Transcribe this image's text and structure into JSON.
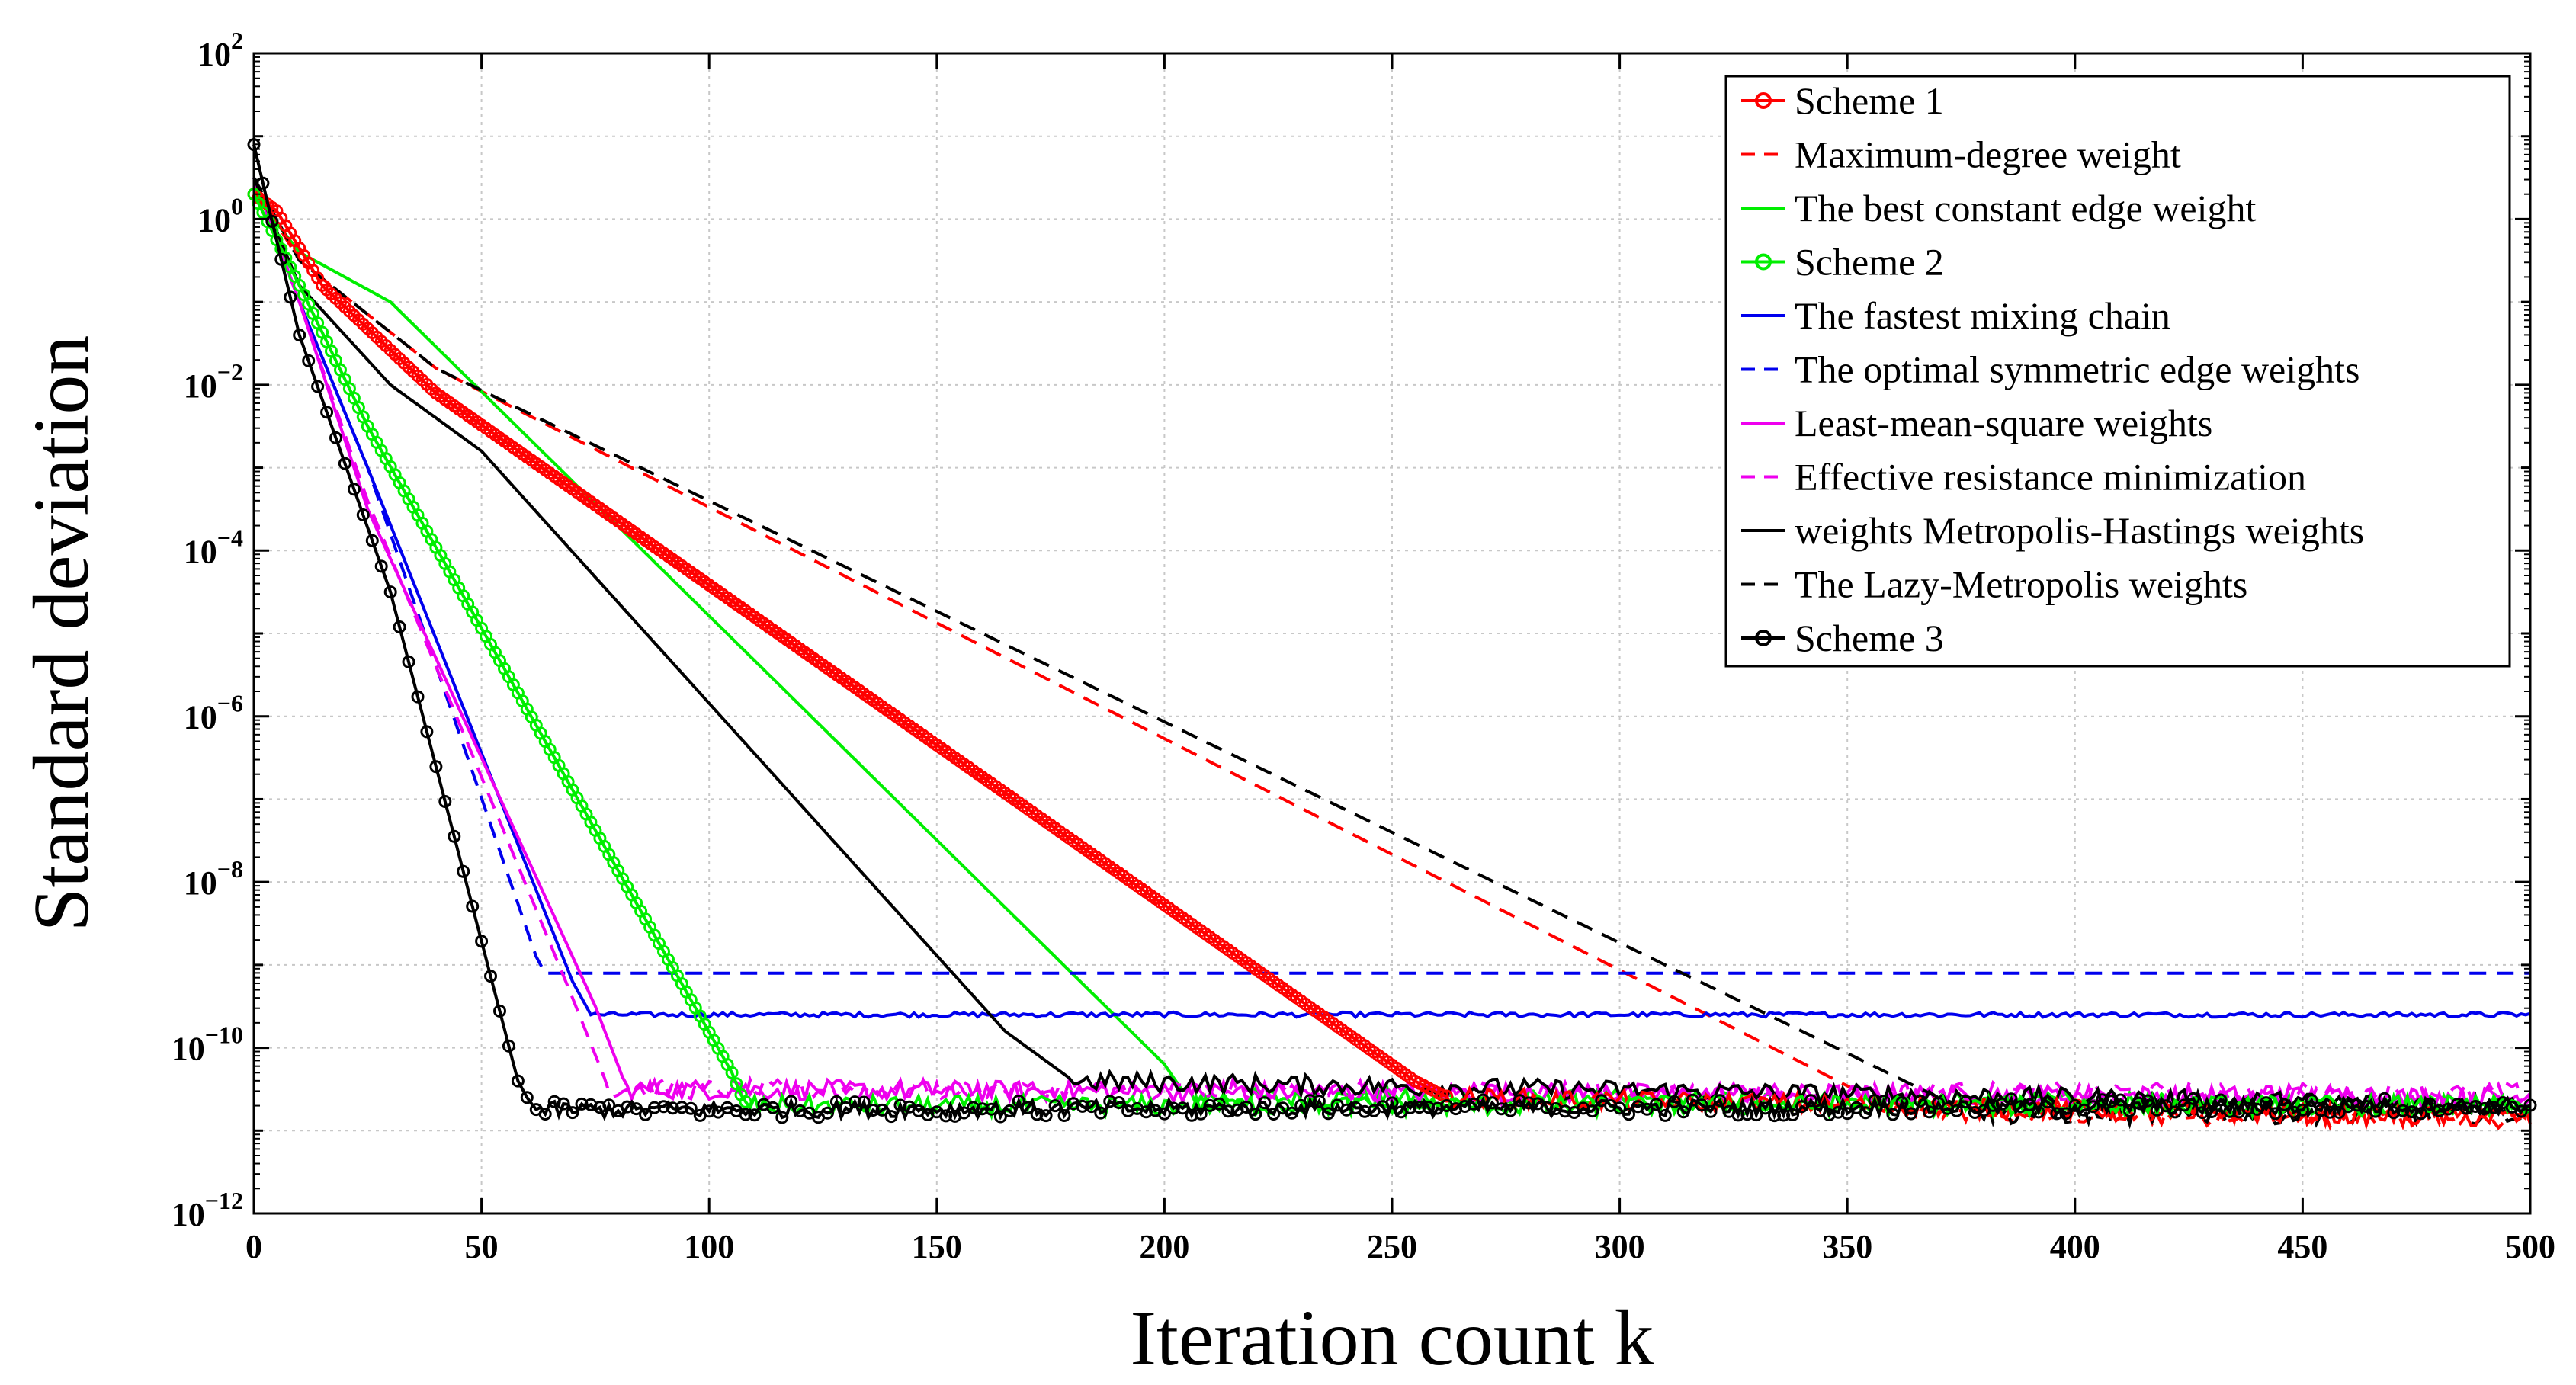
{
  "chart_data": {
    "type": "line",
    "title": "",
    "xlabel": "Iteration count k",
    "ylabel": "Standard deviation",
    "xlim": [
      0,
      500
    ],
    "ylim_exponents": [
      -12,
      2
    ],
    "yscale": "log",
    "grid": true,
    "legend_position": "top-right",
    "x_ticks": [
      "0",
      "50",
      "100",
      "150",
      "200",
      "250",
      "300",
      "350",
      "400",
      "450",
      "500"
    ],
    "y_ticks": [
      {
        "base": "10",
        "exp": "2"
      },
      {
        "base": "10",
        "exp": "0"
      },
      {
        "base": "10",
        "exp": "−2"
      },
      {
        "base": "10",
        "exp": "−4"
      },
      {
        "base": "10",
        "exp": "−6"
      },
      {
        "base": "10",
        "exp": "−8"
      },
      {
        "base": "10",
        "exp": "−10"
      },
      {
        "base": "10",
        "exp": "−12"
      }
    ],
    "series": [
      {
        "name": "Scheme 1",
        "color": "#ff0000",
        "dash": "solid",
        "marker": "circle",
        "markerEvery": 1,
        "points": [
          [
            0,
            0.3
          ],
          [
            5,
            0.1
          ],
          [
            15,
            -0.8
          ],
          [
            40,
            -2.1
          ],
          [
            255,
            -10.4
          ],
          [
            262,
            -10.6
          ],
          [
            500,
            -10.85
          ]
        ],
        "floor": -10.85,
        "noiseFrom": 262
      },
      {
        "name": "Maximum-degree weight",
        "color": "#ff0000",
        "dash": "dash",
        "marker": "none",
        "points": [
          [
            0,
            0.4
          ],
          [
            10,
            -0.5
          ],
          [
            40,
            -1.8
          ],
          [
            355,
            -10.6
          ],
          [
            370,
            -10.8
          ],
          [
            500,
            -10.85
          ]
        ],
        "floor": -10.85,
        "noiseFrom": 370
      },
      {
        "name": "The best constant edge weight",
        "color": "#00ee00",
        "dash": "solid",
        "marker": "none",
        "points": [
          [
            0,
            0.3
          ],
          [
            10,
            -0.4
          ],
          [
            30,
            -1.0
          ],
          [
            200,
            -10.2
          ],
          [
            205,
            -10.6
          ],
          [
            500,
            -10.7
          ]
        ],
        "floor": -10.7,
        "noiseFrom": 205
      },
      {
        "name": "Scheme 2",
        "color": "#00ee00",
        "dash": "solid",
        "marker": "circle",
        "markerEvery": 1,
        "points": [
          [
            0,
            0.3
          ],
          [
            10,
            -0.8
          ],
          [
            25,
            -2.5
          ],
          [
            105,
            -10.3
          ],
          [
            108,
            -10.7
          ],
          [
            500,
            -10.7
          ]
        ],
        "floor": -10.7,
        "noiseFrom": 108
      },
      {
        "name": "The fastest mixing chain",
        "color": "#0000ee",
        "dash": "solid",
        "marker": "none",
        "points": [
          [
            0,
            0.5
          ],
          [
            10,
            -1.0
          ],
          [
            25,
            -3.0
          ],
          [
            70,
            -9.2
          ],
          [
            74,
            -9.6
          ],
          [
            500,
            -9.6
          ]
        ],
        "floor": -9.6,
        "noiseFrom": 74,
        "noiseAmp": 0.03
      },
      {
        "name": "The optimal symmetric edge weights",
        "color": "#0000ee",
        "dash": "dash",
        "marker": "none",
        "points": [
          [
            0,
            0.5
          ],
          [
            10,
            -1.0
          ],
          [
            25,
            -3.0
          ],
          [
            62,
            -8.9
          ],
          [
            64,
            -9.1
          ],
          [
            500,
            -9.1
          ]
        ],
        "floor": -9.1,
        "noiseFrom": 64,
        "noiseAmp": 0
      },
      {
        "name": "Least-mean-square weights",
        "color": "#ee00ee",
        "dash": "solid",
        "marker": "none",
        "points": [
          [
            0,
            0.5
          ],
          [
            10,
            -1.0
          ],
          [
            25,
            -3.5
          ],
          [
            75,
            -9.5
          ],
          [
            82,
            -10.5
          ],
          [
            500,
            -10.6
          ]
        ],
        "floor": -10.6,
        "noiseFrom": 82
      },
      {
        "name": "Effective resistance minimization",
        "color": "#ee00ee",
        "dash": "dash",
        "marker": "none",
        "points": [
          [
            0,
            0.5
          ],
          [
            10,
            -1.0
          ],
          [
            25,
            -3.4
          ],
          [
            70,
            -9.4
          ],
          [
            78,
            -10.5
          ],
          [
            500,
            -10.55
          ]
        ],
        "floor": -10.55,
        "noiseFrom": 78
      },
      {
        "name": "weights Metropolis-Hastings weights",
        "color": "#000000",
        "dash": "solid",
        "marker": "none",
        "points": [
          [
            0,
            0.5
          ],
          [
            10,
            -0.8
          ],
          [
            30,
            -2.0
          ],
          [
            50,
            -2.8
          ],
          [
            165,
            -9.8
          ],
          [
            180,
            -10.4
          ],
          [
            500,
            -10.7
          ]
        ],
        "floor": -10.7,
        "noiseFrom": 180
      },
      {
        "name": "The Lazy-Metropolis weights",
        "color": "#000000",
        "dash": "dash",
        "marker": "none",
        "points": [
          [
            0,
            0.5
          ],
          [
            10,
            -0.5
          ],
          [
            40,
            -1.8
          ],
          [
            370,
            -10.6
          ],
          [
            380,
            -10.8
          ],
          [
            500,
            -10.8
          ]
        ],
        "floor": -10.8,
        "noiseFrom": 380
      },
      {
        "name": "Scheme 3",
        "color": "#000000",
        "dash": "solid",
        "marker": "circle",
        "markerEvery": 2,
        "points": [
          [
            0,
            0.9
          ],
          [
            3,
            0.2
          ],
          [
            10,
            -1.4
          ],
          [
            30,
            -4.5
          ],
          [
            58,
            -10.4
          ],
          [
            60,
            -10.6
          ],
          [
            62,
            -10.75
          ],
          [
            500,
            -10.7
          ]
        ],
        "floor": -10.7,
        "noiseFrom": 62,
        "noiseAmp": 0.1
      }
    ]
  }
}
